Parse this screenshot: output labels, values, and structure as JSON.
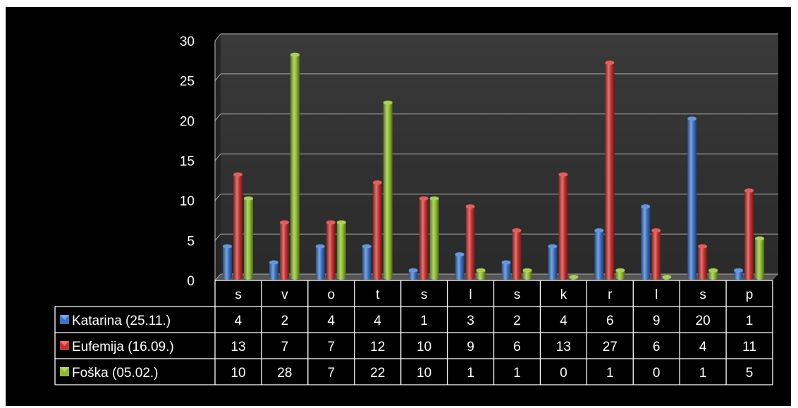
{
  "chart_data": {
    "type": "bar",
    "categories": [
      "s",
      "v",
      "o",
      "t",
      "s",
      "l",
      "s",
      "k",
      "r",
      "l",
      "s",
      "p"
    ],
    "series": [
      {
        "name": "Katarina (25.11.)",
        "color": "#3a73c7",
        "values": [
          4,
          2,
          4,
          4,
          1,
          3,
          2,
          4,
          6,
          9,
          20,
          1
        ]
      },
      {
        "name": "Eufemija (16.09.)",
        "color": "#c8302f",
        "values": [
          13,
          7,
          7,
          12,
          10,
          9,
          6,
          13,
          27,
          6,
          4,
          11
        ]
      },
      {
        "name": "Foška (05.02.)",
        "color": "#8dbb2c",
        "values": [
          10,
          28,
          7,
          22,
          10,
          1,
          1,
          0,
          1,
          0,
          1,
          5
        ]
      }
    ],
    "yticks": [
      0,
      5,
      10,
      15,
      20,
      25,
      30
    ],
    "ylim": [
      0,
      30
    ],
    "grid": true,
    "legend": "data-table"
  }
}
